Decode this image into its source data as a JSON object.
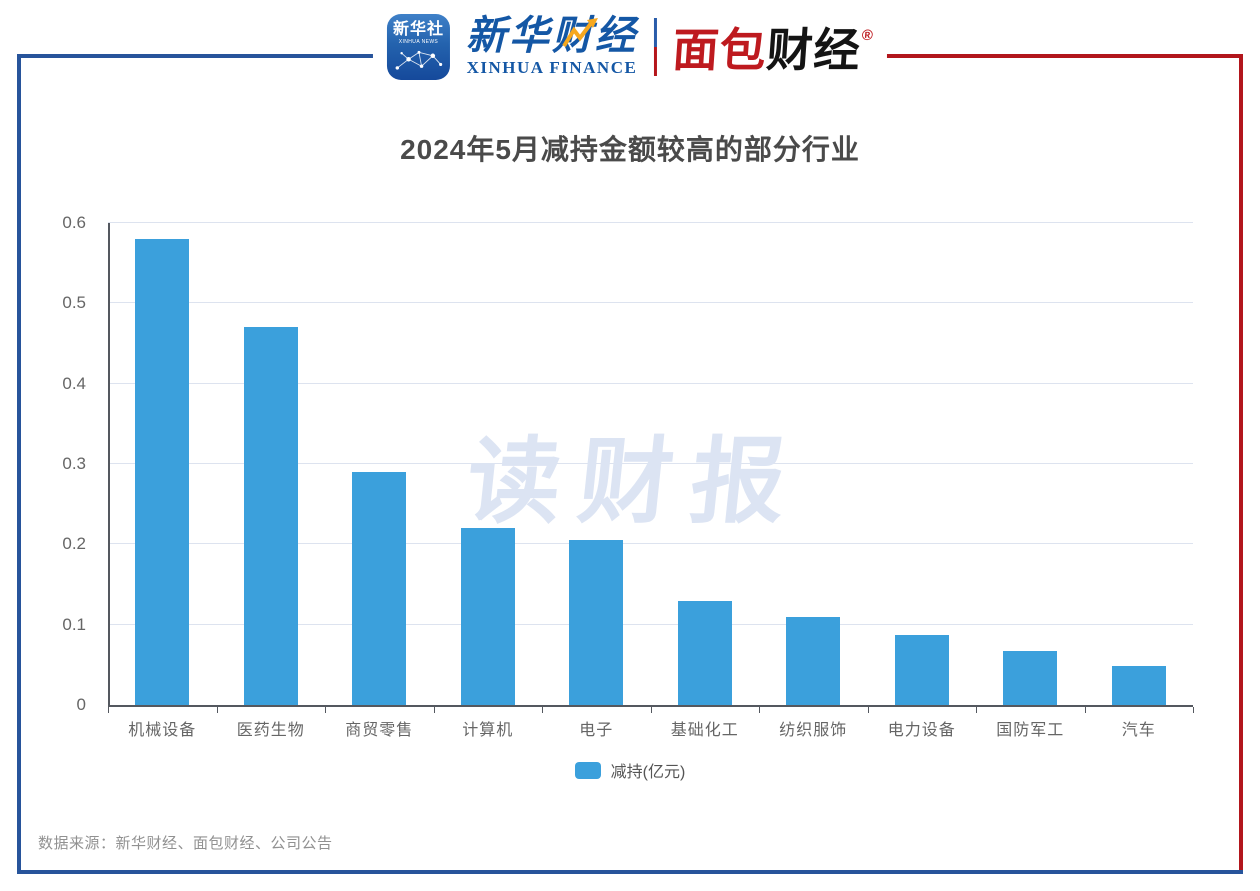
{
  "header": {
    "app_icon": {
      "cn": "新华社",
      "subtitle": "XINHUA NEWS"
    },
    "xinhua_finance": {
      "cn": "新华财经",
      "en": "XINHUA FINANCE"
    },
    "bread_finance": {
      "cn_red": "面包",
      "cn_black": "财经",
      "reg": "®"
    }
  },
  "title": "2024年5月减持金额较高的部分行业",
  "watermark": "读财报",
  "legend": {
    "label": "减持(亿元)"
  },
  "source": "数据来源：新华财经、面包财经、公司公告",
  "colors": {
    "bar": "#3BA0DC",
    "frame_blue": "#27549B",
    "frame_red": "#B2161C",
    "xinhua_blue": "#1457A5",
    "bread_red": "#BE1A1F",
    "title_gray": "#4A4A4A",
    "axis_gray": "#54585F",
    "label_gray": "#666666",
    "gridline": "#DDE3EF",
    "watermark": "#DCE4F3",
    "source_gray": "#919191",
    "gold_accent": "#F6A81F"
  },
  "chart_data": {
    "type": "bar",
    "title": "2024年5月减持金额较高的部分行业",
    "categories": [
      "机械设备",
      "医药生物",
      "商贸零售",
      "计算机",
      "电子",
      "基础化工",
      "纺织服饰",
      "电力设备",
      "国防军工",
      "汽车"
    ],
    "values": [
      0.58,
      0.47,
      0.29,
      0.22,
      0.205,
      0.13,
      0.11,
      0.087,
      0.067,
      0.048
    ],
    "series_name": "减持(亿元)",
    "xlabel": "",
    "ylabel": "",
    "ylim": [
      0,
      0.6
    ],
    "yticks": [
      0,
      0.1,
      0.2,
      0.3,
      0.4,
      0.5,
      0.6
    ],
    "grid": true,
    "legend_position": "bottom"
  }
}
